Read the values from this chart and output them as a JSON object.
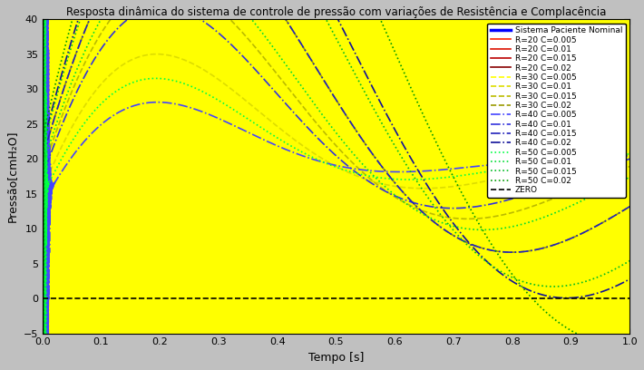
{
  "title": "Resposta dinâmica do sistema de controle de pressão com variações de Resistência e Complacência",
  "xlabel": "Tempo [s]",
  "ylabel": "Pressão[cmH₂O]",
  "xlim": [
    0,
    1
  ],
  "ylim": [
    -5,
    40
  ],
  "xticks": [
    0,
    0.1,
    0.2,
    0.3,
    0.4,
    0.5,
    0.6,
    0.7,
    0.8,
    0.9,
    1
  ],
  "yticks": [
    -5,
    0,
    5,
    10,
    15,
    20,
    25,
    30,
    35,
    40
  ],
  "background_color": "#c0c0c0",
  "axes_bg": "#ffffff",
  "series": [
    {
      "R": 30,
      "C": 0.02,
      "color": "#0000ff",
      "lw": 2.5,
      "ls": "-",
      "label": "Sistema Paciente Nominal"
    },
    {
      "R": 20,
      "C": 0.005,
      "color": "#ff2200",
      "lw": 1.2,
      "ls": "-",
      "label": "R=20 C=0.005"
    },
    {
      "R": 20,
      "C": 0.01,
      "color": "#dd1100",
      "lw": 1.2,
      "ls": "-",
      "label": "R=20 C=0.01"
    },
    {
      "R": 20,
      "C": 0.015,
      "color": "#bb0000",
      "lw": 1.2,
      "ls": "-",
      "label": "R=20 C=0.015"
    },
    {
      "R": 20,
      "C": 0.02,
      "color": "#880000",
      "lw": 1.2,
      "ls": "-",
      "label": "R=20 C=0.02"
    },
    {
      "R": 30,
      "C": 0.005,
      "color": "#ffff00",
      "lw": 1.2,
      "ls": "--",
      "label": "R=30 C=0.005"
    },
    {
      "R": 30,
      "C": 0.01,
      "color": "#dddd00",
      "lw": 1.2,
      "ls": "--",
      "label": "R=30 C=0.01"
    },
    {
      "R": 30,
      "C": 0.015,
      "color": "#bbbb00",
      "lw": 1.2,
      "ls": "--",
      "label": "R=30 C=0.015"
    },
    {
      "R": 30,
      "C": 0.02,
      "color": "#999900",
      "lw": 1.2,
      "ls": "--",
      "label": "R=30 C=0.02"
    },
    {
      "R": 40,
      "C": 0.005,
      "color": "#4444ff",
      "lw": 1.2,
      "ls": "-.",
      "label": "R=40 C=0.005"
    },
    {
      "R": 40,
      "C": 0.01,
      "color": "#3333dd",
      "lw": 1.2,
      "ls": "-.",
      "label": "R=40 C=0.01"
    },
    {
      "R": 40,
      "C": 0.015,
      "color": "#2222bb",
      "lw": 1.2,
      "ls": "-.",
      "label": "R=40 C=0.015"
    },
    {
      "R": 40,
      "C": 0.02,
      "color": "#111199",
      "lw": 1.2,
      "ls": "-.",
      "label": "R=40 C=0.02"
    },
    {
      "R": 50,
      "C": 0.005,
      "color": "#00ff44",
      "lw": 1.2,
      "ls": ":",
      "label": "R=50 C=0.005"
    },
    {
      "R": 50,
      "C": 0.01,
      "color": "#00dd33",
      "lw": 1.2,
      "ls": ":",
      "label": "R=50 C=0.01"
    },
    {
      "R": 50,
      "C": 0.015,
      "color": "#00bb22",
      "lw": 1.2,
      "ls": ":",
      "label": "R=50 C=0.015"
    },
    {
      "R": 50,
      "C": 0.02,
      "color": "#009900",
      "lw": 1.2,
      "ls": ":",
      "label": "R=50 C=0.02"
    }
  ],
  "zero_color": "#000000",
  "zero_ls": "--",
  "zero_lw": 1.2
}
